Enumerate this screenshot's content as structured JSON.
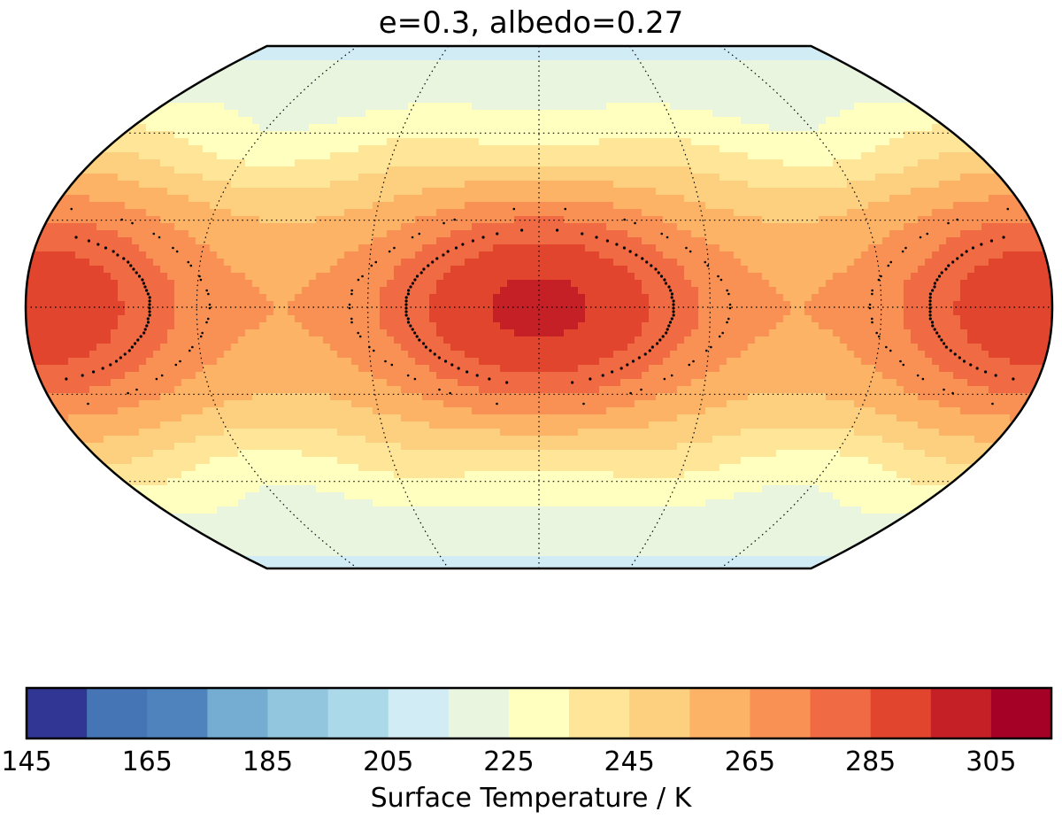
{
  "chart_data": {
    "type": "heatmap",
    "projection": "Robinson",
    "title": "e=0.3, albedo=0.27",
    "colorbar": {
      "label": "Surface Temperature / K",
      "range": [
        145,
        315
      ],
      "level_step": 10,
      "tick_labels": [
        "145",
        "165",
        "185",
        "205",
        "225",
        "245",
        "265",
        "285",
        "305"
      ],
      "colors": [
        "#313695",
        "#4575b4",
        "#4f83bd",
        "#74add1",
        "#92c5de",
        "#abd9e9",
        "#d1ecf4",
        "#e9f5df",
        "#ffffbf",
        "#fee597",
        "#fdd080",
        "#fdb366",
        "#f99154",
        "#f06a44",
        "#e2452d",
        "#c62027",
        "#a50026"
      ]
    },
    "field": {
      "description": "surface temperature on longitude/latitude grid, warm region centered at substellar point (lon 0) and at lon 180",
      "longitudes_deg": [
        -180,
        -120,
        -60,
        0,
        60,
        120,
        180
      ],
      "latitudes_deg": [
        90,
        60,
        30,
        0,
        -30,
        -60,
        -90
      ],
      "values_K": [
        [
          218,
          218,
          218,
          218,
          218,
          218,
          218
        ],
        [
          252,
          240,
          242,
          250,
          242,
          240,
          252
        ],
        [
          268,
          248,
          260,
          272,
          260,
          248,
          268
        ],
        [
          280,
          252,
          266,
          282,
          266,
          252,
          280
        ],
        [
          268,
          248,
          260,
          272,
          260,
          248,
          268
        ],
        [
          252,
          240,
          242,
          250,
          242,
          240,
          252
        ],
        [
          218,
          218,
          218,
          218,
          218,
          218,
          218
        ]
      ]
    },
    "contours": [
      {
        "style": "solid",
        "level_K": 280
      },
      {
        "style": "dashed",
        "level_K": 270
      }
    ],
    "graticule": {
      "meridian_step_deg": 60,
      "parallel_step_deg": 30,
      "style": "dotted"
    }
  }
}
